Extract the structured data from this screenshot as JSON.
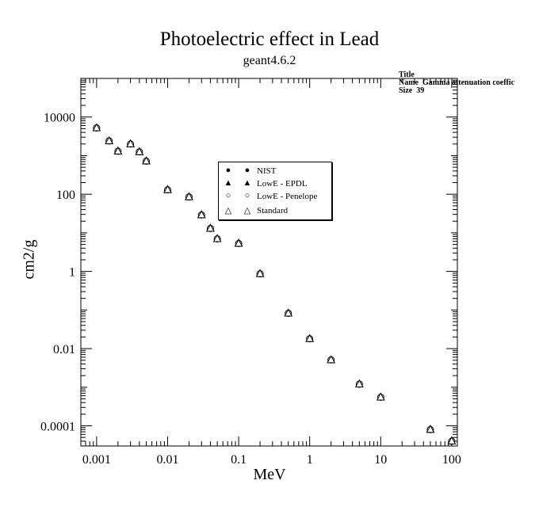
{
  "chart_data": {
    "type": "scatter",
    "title": "Photoelectric effect in Lead",
    "subtitle": "geant4.6.2",
    "xlabel": "MeV",
    "ylabel": "cm2/g",
    "xscale": "log",
    "yscale": "log",
    "xlim": [
      0.0006,
      120
    ],
    "ylim": [
      3e-05,
      100000
    ],
    "x_ticks": [
      "0.001",
      "0.01",
      "0.1",
      "1",
      "10",
      "100"
    ],
    "y_ticks": [
      "0.0001",
      "0.01",
      "1",
      "100",
      "10000"
    ],
    "legend_position": "center",
    "statbox": {
      "title_label": "Title",
      "name_label": "Name",
      "name_value": "Gamma attenuation coeffic",
      "size_label": "Size",
      "size_value": "39"
    },
    "series": [
      {
        "name": "NIST",
        "marker": "filled-circle",
        "x": [
          0.001,
          0.0015,
          0.002,
          0.003,
          0.004,
          0.005,
          0.01,
          0.02,
          0.03,
          0.04,
          0.05,
          0.1,
          0.2,
          0.5,
          1,
          2,
          5,
          10,
          50,
          100
        ],
        "y": [
          5200,
          2400,
          1300,
          2000,
          1250,
          720,
          130,
          85,
          29,
          13,
          7.0,
          5.3,
          0.87,
          0.082,
          0.018,
          0.0051,
          0.0012,
          0.00055,
          8e-05,
          4e-05
        ]
      },
      {
        "name": "LowE - EPDL",
        "marker": "filled-triangle",
        "x": [
          0.001,
          0.0015,
          0.002,
          0.003,
          0.004,
          0.005,
          0.01,
          0.02,
          0.03,
          0.04,
          0.05,
          0.1,
          0.2,
          0.5,
          1,
          2,
          5,
          10,
          50,
          100
        ],
        "y": [
          5200,
          2400,
          1300,
          2000,
          1250,
          720,
          130,
          85,
          29,
          13,
          7.0,
          5.3,
          0.87,
          0.082,
          0.018,
          0.0051,
          0.0012,
          0.00055,
          8e-05,
          4e-05
        ]
      },
      {
        "name": "LowE - Penelope",
        "marker": "open-circle",
        "x": [
          0.001,
          0.0015,
          0.002,
          0.003,
          0.004,
          0.005,
          0.01,
          0.02,
          0.03,
          0.04,
          0.05,
          0.1,
          0.2,
          0.5,
          1,
          2,
          5,
          10,
          50,
          100
        ],
        "y": [
          5200,
          2400,
          1300,
          2000,
          1250,
          720,
          130,
          85,
          29,
          13,
          7.0,
          5.3,
          0.87,
          0.082,
          0.018,
          0.0051,
          0.0012,
          0.00055,
          8e-05,
          4e-05
        ]
      },
      {
        "name": "Standard",
        "marker": "open-triangle",
        "x": [
          0.001,
          0.0015,
          0.002,
          0.003,
          0.004,
          0.005,
          0.01,
          0.02,
          0.03,
          0.04,
          0.05,
          0.1,
          0.2,
          0.5,
          1,
          2,
          5,
          10,
          50,
          100
        ],
        "y": [
          5200,
          2400,
          1300,
          2000,
          1250,
          720,
          130,
          85,
          29,
          13,
          7.0,
          5.3,
          0.87,
          0.082,
          0.018,
          0.0051,
          0.0012,
          0.00055,
          8e-05,
          4e-05
        ]
      }
    ]
  }
}
